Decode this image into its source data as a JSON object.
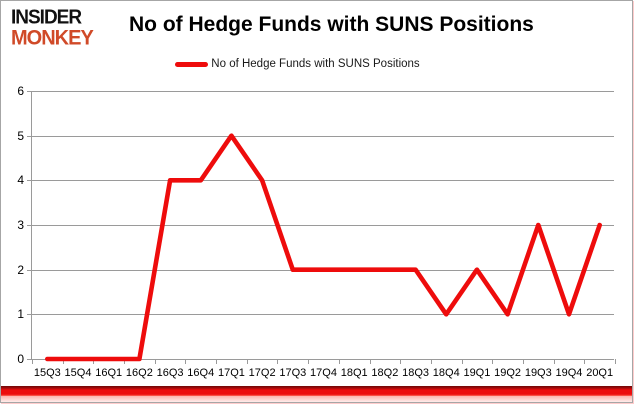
{
  "logo": {
    "line1": "INSIDER",
    "line2": "MONKEY"
  },
  "header": {
    "title": "No of Hedge Funds with SUNS Positions"
  },
  "legend": {
    "label": "No of Hedge Funds with SUNS Positions"
  },
  "colors": {
    "series_red": "#ee0c0c",
    "logo_red": "#d04a28",
    "grid_gray": "#9a9a9a",
    "ribbon_red": "#ec0d0d",
    "text_black": "#000000"
  },
  "chart_data": {
    "type": "line",
    "title": "No of Hedge Funds with SUNS Positions",
    "categories": [
      "15Q3",
      "15Q4",
      "16Q1",
      "16Q2",
      "16Q3",
      "16Q4",
      "17Q1",
      "17Q2",
      "17Q3",
      "17Q4",
      "18Q1",
      "18Q2",
      "18Q3",
      "18Q4",
      "19Q1",
      "19Q2",
      "19Q3",
      "19Q4",
      "20Q1"
    ],
    "series": [
      {
        "name": "No of Hedge Funds with SUNS Positions",
        "color": "#ee0c0c",
        "values": [
          0,
          0,
          0,
          0,
          4,
          4,
          5,
          4,
          2,
          2,
          2,
          2,
          2,
          1,
          2,
          1,
          3,
          1,
          3
        ]
      }
    ],
    "xlabel": "",
    "ylabel": "",
    "ylim": [
      0,
      6
    ],
    "yticks": [
      0,
      1,
      2,
      3,
      4,
      5,
      6
    ],
    "grid": true,
    "legend_position": "top-center"
  }
}
